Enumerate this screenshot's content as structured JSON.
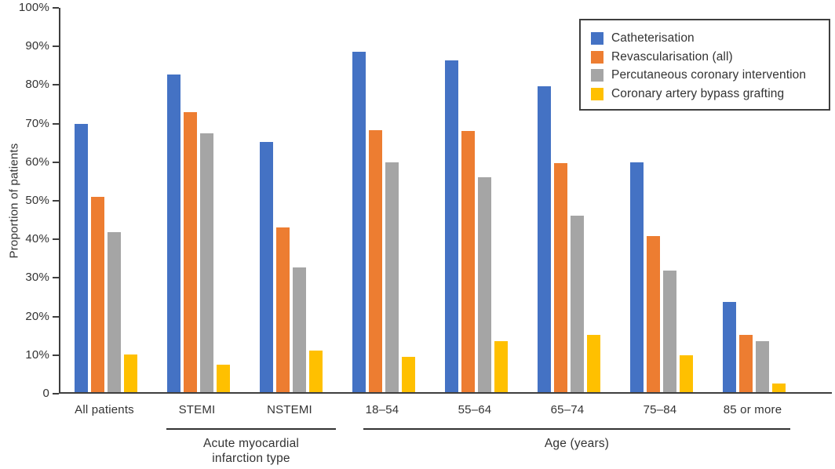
{
  "figure": {
    "background": "#ffffff",
    "text_color": "#333333",
    "axis_color": "#3f3f3f",
    "sections": [
      {
        "label_lines": [
          "Acute myocardial",
          "infarction type"
        ],
        "covers": [
          "STEMI",
          "NSTEMI"
        ]
      },
      {
        "label": "Age (years)",
        "covers": [
          "18–54",
          "55–64",
          "65–74",
          "75–84",
          "85 or more"
        ]
      }
    ]
  },
  "chart_data": {
    "type": "bar",
    "title": "",
    "xlabel": "",
    "ylabel": "Proportion of patients",
    "ylim": [
      0,
      100
    ],
    "ytick_step": 10,
    "ytick_labels": [
      "100%",
      "90%",
      "80%",
      "70%",
      "60%",
      "50%",
      "40%",
      "30%",
      "20%",
      "10%",
      "0"
    ],
    "grid": false,
    "legend_position": "top-right",
    "categories": [
      "All patients",
      "STEMI",
      "NSTEMI",
      "18–54",
      "55–64",
      "65–74",
      "75–84",
      "85 or more"
    ],
    "series": [
      {
        "name": "Catheterisation",
        "color": "#4472C4",
        "values": [
          69.5,
          82.3,
          64.8,
          88.3,
          86.0,
          79.2,
          59.6,
          23.3
        ]
      },
      {
        "name": "Revascularisation (all)",
        "color": "#ED7D31",
        "values": [
          50.7,
          72.6,
          42.6,
          67.8,
          67.6,
          59.3,
          40.4,
          14.8
        ]
      },
      {
        "name": "Percutaneous coronary intervention",
        "color": "#A5A5A5",
        "values": [
          41.5,
          67.0,
          32.3,
          59.6,
          55.6,
          45.8,
          31.5,
          13.3
        ]
      },
      {
        "name": "Coronary artery bypass grafting",
        "color": "#FFC000",
        "values": [
          9.7,
          7.2,
          10.8,
          9.2,
          13.3,
          14.9,
          9.5,
          2.3
        ]
      }
    ]
  }
}
